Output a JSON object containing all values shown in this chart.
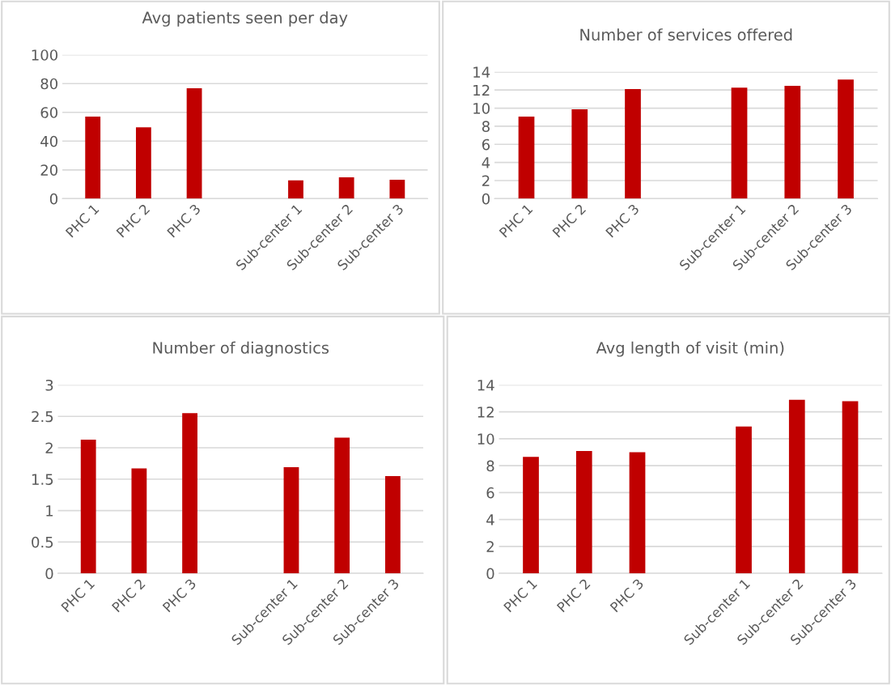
{
  "chart_data": [
    {
      "type": "bar",
      "title": "Avg patients seen per day",
      "categories": [
        "PHC 1",
        "PHC 2",
        "PHC 3",
        null,
        "Sub-center 1",
        "Sub-center 2",
        "Sub-center 3"
      ],
      "values": [
        57,
        49.6,
        76.7,
        null,
        12.7,
        14.8,
        13.1
      ],
      "color": "#c00000",
      "ylim": [
        0,
        100
      ],
      "yticks": [
        0,
        20,
        40,
        60,
        80,
        100
      ],
      "grid": "y"
    },
    {
      "type": "bar",
      "title": "Number of services offered",
      "categories": [
        "PHC 1",
        "PHC 2",
        "PHC 3",
        null,
        "Sub-center 1",
        "Sub-center 2",
        "Sub-center 3"
      ],
      "values": [
        9.07,
        9.87,
        12.1,
        null,
        12.27,
        12.46,
        13.16
      ],
      "color": "#c00000",
      "ylim": [
        0,
        14
      ],
      "yticks": [
        0,
        2,
        4,
        6,
        8,
        10,
        12,
        14
      ],
      "grid": "y"
    },
    {
      "type": "bar",
      "title": "Number of diagnostics",
      "categories": [
        "PHC 1",
        "PHC 2",
        "PHC 3",
        null,
        "Sub-center 1",
        "Sub-center 2",
        "Sub-center 3"
      ],
      "values": [
        2.13,
        1.67,
        2.55,
        null,
        1.69,
        2.16,
        1.55
      ],
      "color": "#c00000",
      "ylim": [
        0,
        3
      ],
      "yticks": [
        0,
        0.5,
        1,
        1.5,
        2,
        2.5,
        3
      ],
      "grid": "y"
    },
    {
      "type": "bar",
      "title": "Avg length of visit (min)",
      "categories": [
        "PHC 1",
        "PHC 2",
        "PHC 3",
        null,
        "Sub-center 1",
        "Sub-center 2",
        "Sub-center 3"
      ],
      "values": [
        8.65,
        9.1,
        9.0,
        null,
        10.92,
        12.9,
        12.8
      ],
      "color": "#c00000",
      "ylim": [
        0,
        14
      ],
      "yticks": [
        0,
        2,
        4,
        6,
        8,
        10,
        12,
        14
      ],
      "grid": "y"
    }
  ]
}
